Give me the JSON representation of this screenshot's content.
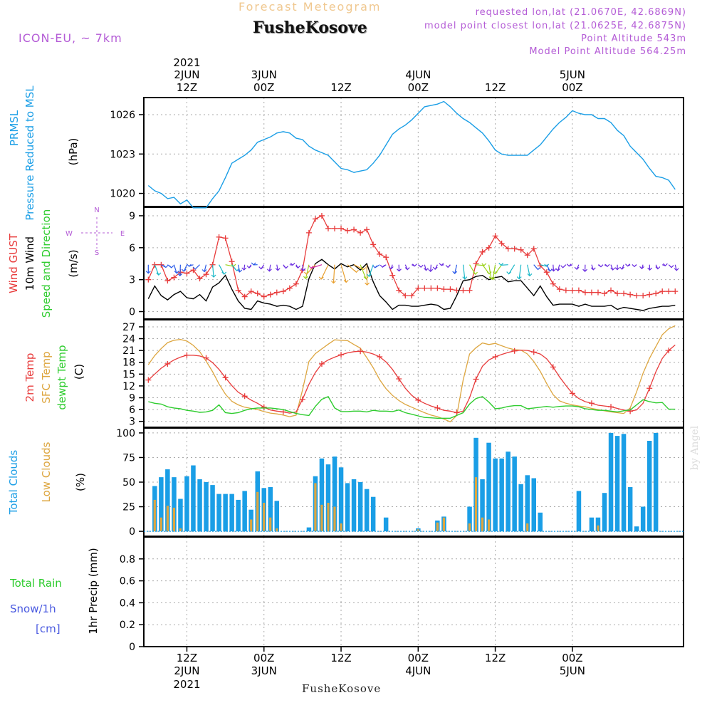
{
  "header": {
    "subtitle": "Forecast Meteogram",
    "location": "FusheKosove",
    "model": "ICON-EU, ~ 7km",
    "requested": "requested lon,lat (21.0670E, 42.6869N)",
    "model_point": "model point closest lon,lat (21.0625E, 42.6875N)",
    "point_altitude": "Point Altitude 543m",
    "model_altitude": "Model Point Altitude 564.25m",
    "footer": "FusheKosove",
    "credit": "by Angel"
  },
  "colors": {
    "pressure": "#1a9ee6",
    "gust": "#e83c3c",
    "wind": "#000000",
    "temp": "#e83c3c",
    "sfc": "#dda640",
    "dew": "#2ecc2e",
    "total_cloud": "#1a9ee6",
    "low_cloud": "#dda640",
    "rain": "#2ecc2e",
    "snow": "#4a5ae0",
    "legend_purple": "#b45cd6"
  },
  "time_axis": {
    "top_year": "2021",
    "bottom_year": "2021",
    "ticks": [
      {
        "t": 12,
        "hour": "12Z",
        "date": "2JUN"
      },
      {
        "t": 24,
        "hour": "00Z",
        "date": "3JUN"
      },
      {
        "t": 36,
        "hour": "12Z",
        "date": ""
      },
      {
        "t": 48,
        "hour": "00Z",
        "date": "4JUN"
      },
      {
        "t": 60,
        "hour": "12Z",
        "date": ""
      },
      {
        "t": 72,
        "hour": "00Z",
        "date": "5JUN"
      }
    ]
  },
  "chart_data": [
    {
      "type": "line",
      "id": "pressure",
      "ylabel_lines": [
        "PRMSL",
        "Pressure Reduced to MSL",
        "(hPa)"
      ],
      "yticks": [
        1020,
        1023,
        1026
      ],
      "ylim": [
        1019,
        1027.3
      ],
      "x": [
        6,
        7,
        8,
        9,
        10,
        11,
        12,
        13,
        14,
        15,
        16,
        17,
        18,
        19,
        20,
        21,
        22,
        23,
        24,
        25,
        26,
        27,
        28,
        29,
        30,
        31,
        32,
        33,
        34,
        35,
        36,
        37,
        38,
        39,
        40,
        41,
        42,
        43,
        44,
        45,
        46,
        47,
        48,
        49,
        50,
        51,
        52,
        53,
        54,
        55,
        56,
        57,
        58,
        59,
        60,
        61,
        62,
        63,
        64,
        65,
        66,
        67,
        68,
        69,
        70,
        71,
        72,
        73,
        74,
        75,
        76,
        77,
        78,
        79,
        80,
        81,
        82,
        83,
        84,
        85,
        86,
        87,
        88
      ],
      "series": [
        {
          "name": "PRMSL",
          "values": [
            1020.6,
            1020.2,
            1020.0,
            1019.6,
            1019.7,
            1019.2,
            1019.5,
            1018.9,
            1018.9,
            1018.9,
            1019.6,
            1020.2,
            1021.2,
            1022.3,
            1022.6,
            1022.9,
            1023.3,
            1023.9,
            1024.1,
            1024.3,
            1024.6,
            1024.7,
            1024.6,
            1024.2,
            1024.1,
            1023.6,
            1023.3,
            1023.1,
            1022.9,
            1022.4,
            1021.9,
            1021.8,
            1021.6,
            1021.7,
            1021.8,
            1022.3,
            1022.9,
            1023.7,
            1024.5,
            1024.9,
            1025.2,
            1025.6,
            1026.1,
            1026.6,
            1026.7,
            1026.8,
            1027.0,
            1026.6,
            1026.1,
            1025.7,
            1025.4,
            1025.0,
            1024.6,
            1024.0,
            1023.3,
            1023.0,
            1022.9,
            1022.9,
            1022.9,
            1022.9,
            1023.3,
            1023.7,
            1024.3,
            1024.9,
            1025.4,
            1025.8,
            1026.3,
            1026.1,
            1026.0,
            1026.0,
            1025.7,
            1025.7,
            1025.4,
            1024.8,
            1024.4,
            1023.6,
            1023.1,
            1022.6,
            1021.9,
            1021.3,
            1021.2,
            1021.0,
            1020.3
          ]
        }
      ]
    },
    {
      "type": "line",
      "id": "wind",
      "ylabel_lines": [
        "Wind GUST",
        "10m Wind",
        "Speed and Direction",
        "(m/s)"
      ],
      "compass": {
        "n": "N",
        "s": "S",
        "e": "E",
        "w": "W"
      },
      "yticks": [
        0,
        3,
        6,
        9
      ],
      "ylim": [
        -0.7,
        9.8
      ],
      "x": [
        6,
        7,
        8,
        9,
        10,
        11,
        12,
        13,
        14,
        15,
        16,
        17,
        18,
        19,
        20,
        21,
        22,
        23,
        24,
        25,
        26,
        27,
        28,
        29,
        30,
        31,
        32,
        33,
        34,
        35,
        36,
        37,
        38,
        39,
        40,
        41,
        42,
        43,
        44,
        45,
        46,
        47,
        48,
        49,
        50,
        51,
        52,
        53,
        54,
        55,
        56,
        57,
        58,
        59,
        60,
        61,
        62,
        63,
        64,
        65,
        66,
        67,
        68,
        69,
        70,
        71,
        72,
        73,
        74,
        75,
        76,
        77,
        78,
        79,
        80,
        81,
        82,
        83,
        84,
        85,
        86,
        87,
        88
      ],
      "series": [
        {
          "name": "Wind GUST",
          "values": [
            3.0,
            4.4,
            4.4,
            2.9,
            3.2,
            3.7,
            3.6,
            3.9,
            3.1,
            3.5,
            4.4,
            7.0,
            6.9,
            4.7,
            2.0,
            1.4,
            1.9,
            1.7,
            1.4,
            1.6,
            1.8,
            1.9,
            2.2,
            2.6,
            3.9,
            7.4,
            8.7,
            9.0,
            7.8,
            7.8,
            7.8,
            7.6,
            7.7,
            7.4,
            7.7,
            6.3,
            5.4,
            5.1,
            3.4,
            2.0,
            1.5,
            1.5,
            2.2,
            2.2,
            2.2,
            2.2,
            2.1,
            2.1,
            2.0,
            2.0,
            2.0,
            4.5,
            5.6,
            6.0,
            7.1,
            6.4,
            5.9,
            5.9,
            5.8,
            5.3,
            5.9,
            4.3,
            3.7,
            2.6,
            2.1,
            2.0,
            2.0,
            2.0,
            1.8,
            1.8,
            1.8,
            1.7,
            2.0,
            1.7,
            1.7,
            1.6,
            1.5,
            1.5,
            1.6,
            1.7,
            1.9,
            1.9,
            1.9
          ]
        },
        {
          "name": "10m Wind",
          "values": [
            1.2,
            2.4,
            1.5,
            1.1,
            1.6,
            1.9,
            1.3,
            1.2,
            1.6,
            1.0,
            2.3,
            2.7,
            3.4,
            2.1,
            1.0,
            0.3,
            0.2,
            1.0,
            0.8,
            0.7,
            0.5,
            0.6,
            0.5,
            0.2,
            0.5,
            3.1,
            4.5,
            4.9,
            4.4,
            4.0,
            4.5,
            4.2,
            4.4,
            3.9,
            4.5,
            2.8,
            1.5,
            0.9,
            0.2,
            0.6,
            0.6,
            0.5,
            0.5,
            0.6,
            0.7,
            0.6,
            0.2,
            0.3,
            1.5,
            2.9,
            3.0,
            3.3,
            3.4,
            3.0,
            3.2,
            3.3,
            2.8,
            2.9,
            2.9,
            2.2,
            1.5,
            2.4,
            1.4,
            0.6,
            0.7,
            0.7,
            0.7,
            0.5,
            0.7,
            0.5,
            0.5,
            0.5,
            0.6,
            0.2,
            0.4,
            0.3,
            0.2,
            0.1,
            0.3,
            0.4,
            0.5,
            0.5,
            0.6
          ]
        }
      ]
    },
    {
      "type": "line",
      "id": "temperature",
      "ylabel_lines": [
        "2m Temp",
        "SFC Temp",
        "dewpt Temp",
        "(C)"
      ],
      "yticks": [
        3,
        6,
        9,
        12,
        15,
        18,
        21,
        24,
        27
      ],
      "ylim": [
        1.5,
        28.8
      ],
      "x": [
        6,
        7,
        8,
        9,
        10,
        11,
        12,
        13,
        14,
        15,
        16,
        17,
        18,
        19,
        20,
        21,
        22,
        23,
        24,
        25,
        26,
        27,
        28,
        29,
        30,
        31,
        32,
        33,
        34,
        35,
        36,
        37,
        38,
        39,
        40,
        41,
        42,
        43,
        44,
        45,
        46,
        47,
        48,
        49,
        50,
        51,
        52,
        53,
        54,
        55,
        56,
        57,
        58,
        59,
        60,
        61,
        62,
        63,
        64,
        65,
        66,
        67,
        68,
        69,
        70,
        71,
        72,
        73,
        74,
        75,
        76,
        77,
        78,
        79,
        80,
        81,
        82,
        83,
        84,
        85,
        86,
        87,
        88
      ],
      "series": [
        {
          "name": "2m Temp",
          "values": [
            13.5,
            15.0,
            16.5,
            17.6,
            18.6,
            19.3,
            19.8,
            19.8,
            19.6,
            19.1,
            17.9,
            16.2,
            14.1,
            12.1,
            10.4,
            9.4,
            8.4,
            7.6,
            6.6,
            5.9,
            5.6,
            5.4,
            5.1,
            5.4,
            8.6,
            12.4,
            15.4,
            17.6,
            18.6,
            19.3,
            19.9,
            20.4,
            20.7,
            20.8,
            20.6,
            20.1,
            19.4,
            18.1,
            16.2,
            13.8,
            11.4,
            9.6,
            8.4,
            7.6,
            6.9,
            6.4,
            5.8,
            5.6,
            5.2,
            5.6,
            9.0,
            13.7,
            17.0,
            18.6,
            19.4,
            20.0,
            20.5,
            20.9,
            21.1,
            21.0,
            20.6,
            20.1,
            18.9,
            16.8,
            14.3,
            12.1,
            10.1,
            8.8,
            8.0,
            7.6,
            7.1,
            6.9,
            6.7,
            6.3,
            5.9,
            5.6,
            5.9,
            7.6,
            11.4,
            15.6,
            19.0,
            21.0,
            22.4
          ]
        },
        {
          "name": "SFC Temp",
          "values": [
            17.4,
            19.7,
            21.5,
            23.0,
            23.6,
            23.8,
            23.4,
            22.3,
            20.7,
            18.3,
            15.6,
            12.5,
            9.9,
            8.1,
            7.2,
            6.6,
            6.3,
            6.0,
            5.5,
            5.1,
            4.9,
            4.6,
            4.2,
            4.6,
            11.0,
            18.2,
            20.2,
            21.4,
            22.6,
            23.7,
            23.6,
            23.5,
            22.5,
            21.6,
            19.2,
            16.6,
            13.6,
            11.3,
            9.6,
            8.3,
            7.3,
            6.6,
            5.9,
            5.2,
            4.6,
            4.2,
            3.6,
            2.9,
            4.5,
            13.5,
            20.1,
            21.7,
            22.9,
            22.5,
            22.8,
            22.2,
            21.6,
            21.2,
            21.1,
            20.1,
            18.2,
            15.7,
            12.6,
            9.8,
            8.2,
            7.6,
            7.2,
            6.9,
            6.7,
            6.3,
            6.0,
            5.7,
            5.4,
            5.2,
            5.0,
            6.4,
            10.5,
            15.2,
            19.0,
            22.0,
            25.0,
            26.5,
            27.3
          ]
        },
        {
          "name": "dewpt Temp",
          "values": [
            8.0,
            7.6,
            7.4,
            6.7,
            6.4,
            6.2,
            5.8,
            5.6,
            5.3,
            5.4,
            5.8,
            7.2,
            5.2,
            5.0,
            5.2,
            5.8,
            6.2,
            6.4,
            6.4,
            6.4,
            6.2,
            6.0,
            5.5,
            5.0,
            4.7,
            4.5,
            6.8,
            8.6,
            9.3,
            6.4,
            5.5,
            5.5,
            5.6,
            5.6,
            5.4,
            5.8,
            5.6,
            5.6,
            5.5,
            5.9,
            5.2,
            4.8,
            4.4,
            4.0,
            3.9,
            3.8,
            3.8,
            3.8,
            4.5,
            5.2,
            7.4,
            8.8,
            9.3,
            7.9,
            6.2,
            6.4,
            6.8,
            7.0,
            7.0,
            6.2,
            6.4,
            6.6,
            6.8,
            6.6,
            6.8,
            6.9,
            6.9,
            6.7,
            6.2,
            6.0,
            5.8,
            5.8,
            5.6,
            5.4,
            5.7,
            5.9,
            7.2,
            8.5,
            8.0,
            7.7,
            7.8,
            6.1,
            6.1
          ]
        }
      ]
    },
    {
      "type": "bar",
      "id": "clouds",
      "ylabel_lines": [
        "Total Clouds",
        "Low Clouds",
        "(%)"
      ],
      "yticks": [
        0,
        25,
        50,
        75,
        100
      ],
      "ylim": [
        -5,
        105
      ],
      "x": [
        6,
        7,
        8,
        9,
        10,
        11,
        12,
        13,
        14,
        15,
        16,
        17,
        18,
        19,
        20,
        21,
        22,
        23,
        24,
        25,
        26,
        27,
        28,
        29,
        30,
        31,
        32,
        33,
        34,
        35,
        36,
        37,
        38,
        39,
        40,
        41,
        42,
        43,
        44,
        45,
        46,
        47,
        48,
        49,
        50,
        51,
        52,
        53,
        54,
        55,
        56,
        57,
        58,
        59,
        60,
        61,
        62,
        63,
        64,
        65,
        66,
        67,
        68,
        69,
        70,
        71,
        72,
        73,
        74,
        75,
        76,
        77,
        78,
        79,
        80,
        81,
        82,
        83,
        84,
        85,
        86,
        87,
        88
      ],
      "series": [
        {
          "name": "Total Clouds",
          "values": [
            0,
            46,
            55,
            63,
            55,
            33,
            56,
            67,
            53,
            50,
            47,
            38,
            38,
            38,
            32,
            41,
            22,
            61,
            44,
            45,
            31,
            0,
            0,
            0,
            0,
            4,
            56,
            74,
            68,
            76,
            65,
            49,
            53,
            50,
            43,
            35,
            0,
            14,
            0,
            0,
            0,
            0,
            3,
            0,
            0,
            11,
            15,
            0,
            0,
            0,
            25,
            95,
            53,
            90,
            74,
            74,
            81,
            76,
            48,
            57,
            54,
            19,
            0,
            0,
            0,
            0,
            0,
            41,
            0,
            14,
            14,
            39,
            100,
            97,
            99,
            45,
            5,
            25,
            92,
            100,
            0,
            0,
            0
          ]
        },
        {
          "name": "Low Clouds",
          "values": [
            0,
            32,
            14,
            26,
            24,
            3,
            0,
            0,
            0,
            0,
            0,
            0,
            0,
            0,
            0,
            0,
            12,
            40,
            29,
            14,
            3,
            0,
            0,
            0,
            0,
            0,
            49,
            27,
            29,
            25,
            8,
            0,
            0,
            0,
            0,
            0,
            0,
            0,
            0,
            0,
            0,
            0,
            2,
            0,
            0,
            9,
            14,
            0,
            0,
            0,
            8,
            55,
            14,
            12,
            0,
            0,
            0,
            0,
            0,
            8,
            0,
            0,
            0,
            0,
            0,
            0,
            0,
            0,
            0,
            0,
            6,
            0,
            0,
            0,
            0,
            0,
            0,
            0,
            0,
            0,
            0,
            0,
            0
          ]
        }
      ]
    },
    {
      "type": "line",
      "id": "precip",
      "ylabel_lines": [
        "1hr Precip (mm)"
      ],
      "legend_lines": [
        "Total  Rain",
        "Snow/1h",
        "[cm]"
      ],
      "yticks": [
        "0",
        "0.2",
        "0.4",
        "0.6",
        "0.8"
      ],
      "ylim": [
        0,
        1.0
      ],
      "x": [],
      "series": [
        {
          "name": "Total Rain",
          "values": []
        },
        {
          "name": "Snow/1h",
          "values": []
        }
      ]
    }
  ]
}
